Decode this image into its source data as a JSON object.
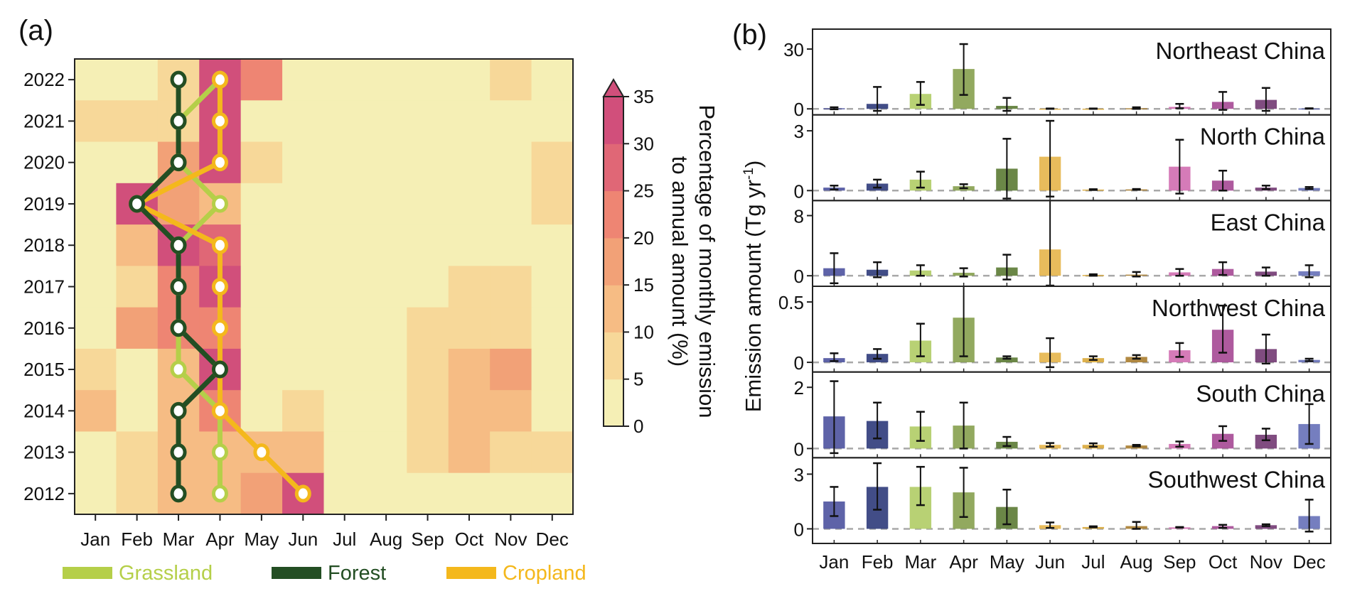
{
  "chart_data": [
    {
      "panel": "(a)",
      "type": "heatmap",
      "title": "",
      "xlabel": "",
      "ylabel": "",
      "x_categories": [
        "Jan",
        "Feb",
        "Mar",
        "Apr",
        "May",
        "Jun",
        "Jul",
        "Aug",
        "Sep",
        "Oct",
        "Nov",
        "Dec"
      ],
      "y_categories": [
        "2022",
        "2021",
        "2020",
        "2019",
        "2018",
        "2017",
        "2016",
        "2015",
        "2014",
        "2013",
        "2012"
      ],
      "value_bins": [
        "0-5",
        "5-10",
        "10-15",
        "15-20",
        "20-25",
        "25-30",
        "30-35+"
      ],
      "values_bin_index": [
        [
          0,
          0,
          1,
          6,
          4,
          0,
          0,
          0,
          0,
          0,
          1,
          0
        ],
        [
          1,
          1,
          1,
          6,
          0,
          0,
          0,
          0,
          0,
          0,
          0,
          0
        ],
        [
          0,
          0,
          3,
          6,
          1,
          0,
          0,
          0,
          0,
          0,
          0,
          1
        ],
        [
          0,
          6,
          3,
          2,
          0,
          0,
          0,
          0,
          0,
          0,
          0,
          1
        ],
        [
          0,
          2,
          6,
          5,
          0,
          0,
          0,
          0,
          0,
          0,
          0,
          0
        ],
        [
          0,
          1,
          4,
          6,
          0,
          0,
          0,
          0,
          0,
          1,
          1,
          0
        ],
        [
          0,
          3,
          4,
          4,
          0,
          0,
          0,
          0,
          1,
          1,
          1,
          0
        ],
        [
          1,
          0,
          2,
          6,
          0,
          0,
          0,
          0,
          1,
          2,
          3,
          0
        ],
        [
          2,
          0,
          2,
          4,
          0,
          1,
          0,
          0,
          1,
          2,
          2,
          0
        ],
        [
          0,
          1,
          2,
          2,
          2,
          2,
          0,
          0,
          1,
          2,
          1,
          1
        ],
        [
          0,
          1,
          2,
          2,
          3,
          6,
          0,
          0,
          0,
          0,
          0,
          0
        ]
      ],
      "colorbar": {
        "label_line1": "Percentage of monthly emission",
        "label_line2": "to annual amount (%)",
        "ticks": [
          "0",
          "5",
          "10",
          "15",
          "20",
          "25",
          "30",
          "35"
        ],
        "range": [
          0,
          35
        ],
        "extend": "max",
        "colors": [
          "#f5efb5",
          "#f7d899",
          "#f6bc84",
          "#f2a177",
          "#ee8573",
          "#e06776",
          "#d14f7b"
        ]
      },
      "peak_lines": {
        "series": [
          {
            "name": "Grassland",
            "color": "#b5cf49",
            "peak_month_index": [
              3,
              2,
              2,
              3,
              2,
              2,
              2,
              2,
              3,
              3,
              3
            ]
          },
          {
            "name": "Cropland",
            "color": "#f4b81c",
            "peak_month_index": [
              3,
              3,
              3,
              1,
              3,
              3,
              3,
              3,
              3,
              4,
              5
            ]
          },
          {
            "name": "Forest",
            "color": "#234e23",
            "peak_month_index": [
              2,
              2,
              2,
              1,
              2,
              2,
              2,
              3,
              2,
              2,
              2
            ]
          }
        ]
      },
      "legend": [
        {
          "name": "Grassland",
          "color": "#b5cf49"
        },
        {
          "name": "Forest",
          "color": "#234e23"
        },
        {
          "name": "Cropland",
          "color": "#f4b81c"
        }
      ],
      "legend_position": "bottom"
    },
    {
      "panel": "(b)",
      "type": "bar",
      "ylabel": "Emission amount (Tg yr",
      "ylabel_sup": "-1",
      "ylabel_close": ")",
      "categories": [
        "Jan",
        "Feb",
        "Mar",
        "Apr",
        "May",
        "Jun",
        "Jul",
        "Aug",
        "Sep",
        "Oct",
        "Nov",
        "Dec"
      ],
      "month_colors": [
        "#4c529e",
        "#2e3a7a",
        "#b0cc65",
        "#86a04e",
        "#5b7a33",
        "#e6b54a",
        "#d9a93a",
        "#a87c2e",
        "#d06db0",
        "#a54894",
        "#723872",
        "#6670b8"
      ],
      "zero_line": "dashed",
      "subplots": [
        {
          "region": "Northeast China",
          "ylim": [
            -3,
            40
          ],
          "yticks": [
            0,
            30
          ],
          "values": [
            0.3,
            2.5,
            7.5,
            20,
            1.5,
            0.1,
            0.1,
            0.3,
            1.0,
            3.5,
            4.5,
            0.2
          ],
          "err_low": [
            -0.2,
            -1.0,
            2.0,
            7.0,
            -1.0,
            0.0,
            0.0,
            0.0,
            0.3,
            -0.5,
            -1.0,
            0.1
          ],
          "err_high": [
            0.8,
            11.0,
            13.5,
            32.5,
            5.5,
            0.2,
            0.2,
            0.8,
            2.5,
            8.5,
            10.5,
            0.3
          ]
        },
        {
          "region": "North China",
          "ylim": [
            -0.5,
            3.8
          ],
          "yticks": [
            0,
            3
          ],
          "values": [
            0.15,
            0.35,
            0.55,
            0.22,
            1.1,
            1.7,
            0.05,
            0.06,
            1.2,
            0.5,
            0.15,
            0.13
          ],
          "err_low": [
            0.05,
            0.15,
            0.15,
            0.12,
            -0.4,
            -0.3,
            0.03,
            0.04,
            -0.15,
            0.0,
            0.07,
            0.08
          ],
          "err_high": [
            0.25,
            0.55,
            0.95,
            0.32,
            2.6,
            3.5,
            0.07,
            0.08,
            2.55,
            1.0,
            0.25,
            0.18
          ]
        },
        {
          "region": "East China",
          "ylim": [
            -1.4,
            10
          ],
          "yticks": [
            0,
            8
          ],
          "values": [
            1.0,
            0.8,
            0.7,
            0.4,
            1.1,
            3.5,
            0.1,
            0.15,
            0.45,
            0.9,
            0.55,
            0.6
          ],
          "err_low": [
            -1.0,
            -0.2,
            0.0,
            -0.1,
            -0.5,
            -2.0,
            0.0,
            -0.1,
            0.0,
            0.1,
            0.0,
            -0.2
          ],
          "err_high": [
            3.0,
            1.8,
            1.4,
            1.0,
            2.8,
            11.0,
            0.2,
            0.5,
            0.9,
            1.8,
            1.1,
            1.4
          ]
        },
        {
          "region": "Northwest China",
          "ylim": [
            -0.08,
            0.63
          ],
          "yticks": [
            0,
            0.5
          ],
          "values": [
            0.035,
            0.07,
            0.18,
            0.37,
            0.04,
            0.08,
            0.035,
            0.045,
            0.1,
            0.27,
            0.11,
            0.02
          ],
          "err_low": [
            0.01,
            0.03,
            0.05,
            0.05,
            0.03,
            -0.04,
            0.02,
            0.03,
            0.045,
            0.08,
            -0.01,
            0.01
          ],
          "err_high": [
            0.075,
            0.11,
            0.32,
            0.72,
            0.05,
            0.2,
            0.05,
            0.06,
            0.16,
            0.47,
            0.23,
            0.03
          ]
        },
        {
          "region": "South China",
          "ylim": [
            -0.3,
            2.5
          ],
          "yticks": [
            0,
            2
          ],
          "values": [
            1.05,
            0.9,
            0.72,
            0.75,
            0.22,
            0.12,
            0.12,
            0.1,
            0.15,
            0.48,
            0.45,
            0.8
          ],
          "err_low": [
            -0.15,
            0.33,
            0.25,
            0.0,
            0.08,
            0.06,
            0.06,
            0.07,
            0.06,
            0.25,
            0.27,
            0.15
          ],
          "err_high": [
            2.2,
            1.5,
            1.2,
            1.5,
            0.38,
            0.18,
            0.17,
            0.12,
            0.23,
            0.73,
            0.65,
            1.45
          ]
        },
        {
          "region": "Southwest China",
          "ylim": [
            -0.8,
            3.9
          ],
          "yticks": [
            0,
            3
          ],
          "values": [
            1.5,
            2.3,
            2.3,
            2.0,
            1.2,
            0.2,
            0.1,
            0.15,
            0.08,
            0.15,
            0.2,
            0.7
          ],
          "err_low": [
            0.7,
            1.05,
            1.3,
            0.65,
            0.25,
            0.05,
            0.08,
            0.0,
            0.07,
            0.05,
            0.15,
            -0.15
          ],
          "err_high": [
            2.3,
            3.6,
            3.4,
            3.35,
            2.15,
            0.35,
            0.14,
            0.38,
            0.1,
            0.22,
            0.25,
            1.6
          ]
        }
      ]
    }
  ]
}
